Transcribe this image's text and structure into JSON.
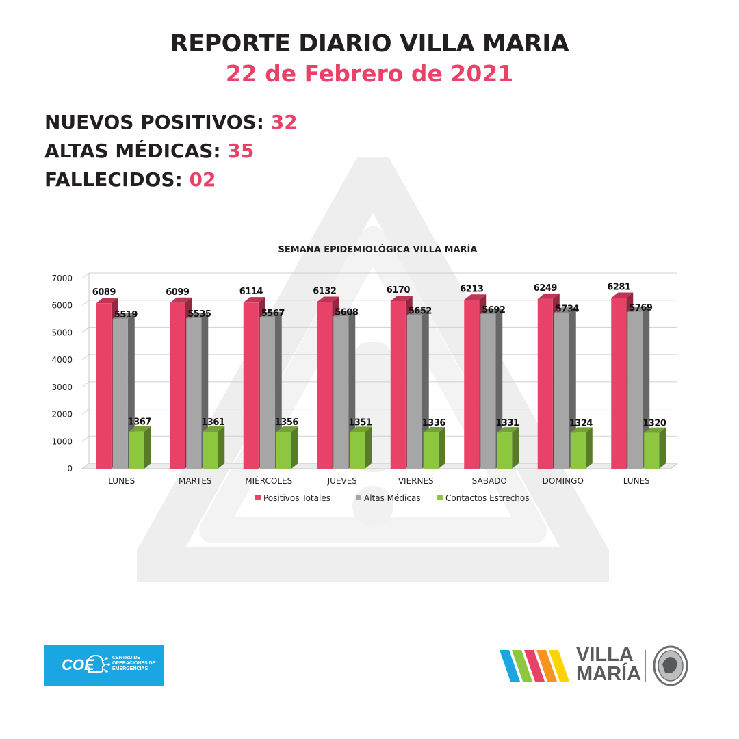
{
  "header": {
    "title": "REPORTE DIARIO VILLA MARIA",
    "date": "22 de Febrero de 2021"
  },
  "stats": [
    {
      "label": "NUEVOS POSITIVOS:",
      "value": "32"
    },
    {
      "label": "ALTAS MÉDICAS:",
      "value": "35"
    },
    {
      "label": "FALLECIDOS:",
      "value": "02"
    }
  ],
  "chart_data": {
    "type": "bar",
    "title": "SEMANA EPIDEMIOLÓGICA VILLA MARÍA",
    "categories": [
      "LUNES",
      "MARTES",
      "MIÉRCOLES",
      "JUEVES",
      "VIERNES",
      "SÁBADO",
      "DOMINGO",
      "LUNES"
    ],
    "series": [
      {
        "name": "Positivos Totales",
        "color": "#e94268",
        "values": [
          6089,
          6099,
          6114,
          6132,
          6170,
          6213,
          6249,
          6281
        ]
      },
      {
        "name": "Altas Médicas",
        "color": "#a6a6a6",
        "values": [
          5519,
          5535,
          5567,
          5608,
          5652,
          5692,
          5734,
          5769
        ]
      },
      {
        "name": "Contactos Estrechos",
        "color": "#8dc63f",
        "values": [
          1367,
          1361,
          1356,
          1351,
          1336,
          1331,
          1324,
          1320
        ]
      }
    ],
    "ylim": [
      0,
      7000
    ],
    "yticks": [
      0,
      1000,
      2000,
      3000,
      4000,
      5000,
      6000,
      7000
    ],
    "grid": true,
    "legend": "bottom"
  },
  "footer": {
    "coe_word": "COE",
    "coe_text": "CENTRO DE OPERACIONES DE EMERGENCIAS",
    "vm_word": "VILLA\nMARÍA"
  },
  "colors": {
    "accent": "#e94268",
    "text_dark": "#231f20",
    "coe_blue": "#1aa6e3"
  }
}
